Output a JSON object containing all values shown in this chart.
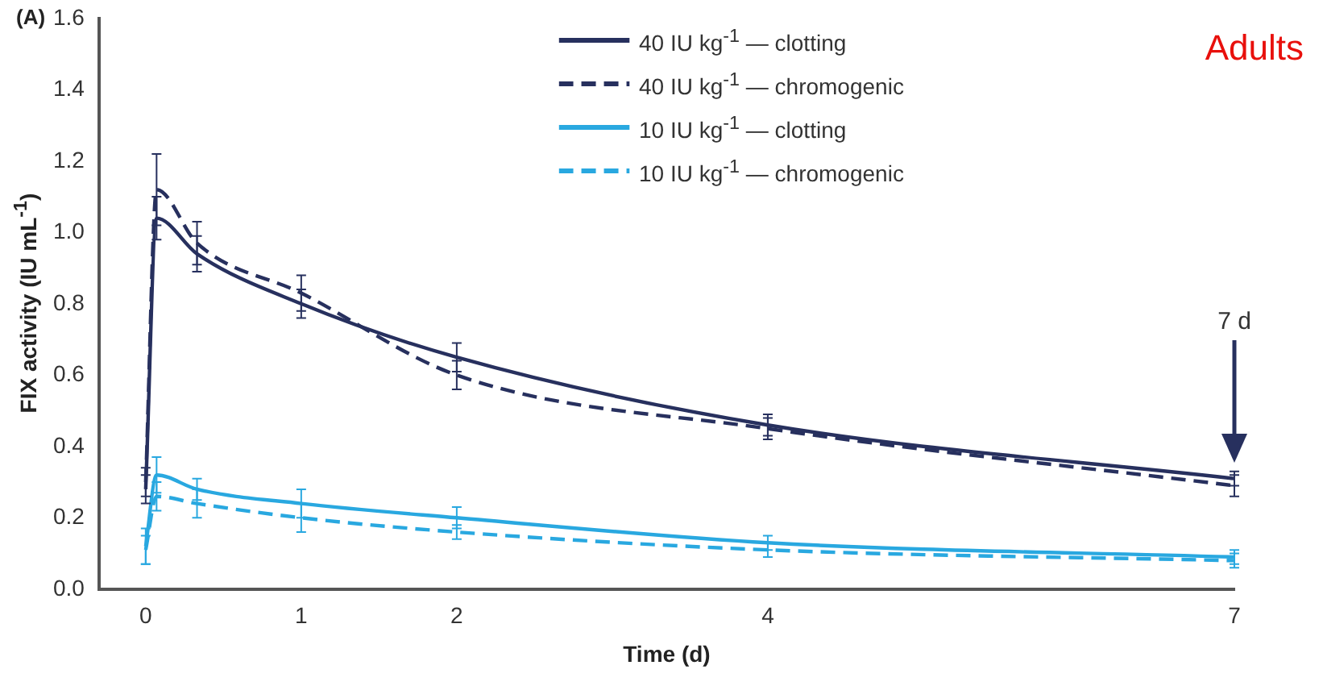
{
  "chart_data": {
    "type": "line",
    "xlabel": "Time (d)",
    "ylabel": "FIX activity (IU mL$^{-1}$)",
    "x": [
      0,
      0.07,
      0.33,
      1,
      2,
      4,
      7
    ],
    "series": [
      {
        "name": "40 IU kg$^{-1}$ — clotting",
        "color": "#27305e",
        "line_style": "solid",
        "values": [
          0.28,
          1.04,
          0.94,
          0.8,
          0.65,
          0.46,
          0.31
        ],
        "errors": [
          0.04,
          0.06,
          0.05,
          0.04,
          0.04,
          0.03,
          0.02
        ]
      },
      {
        "name": "40 IU kg$^{-1}$ — chromogenic",
        "color": "#27305e",
        "line_style": "dashed",
        "values": [
          0.3,
          1.12,
          0.97,
          0.83,
          0.6,
          0.45,
          0.29
        ],
        "errors": [
          0.04,
          0.1,
          0.06,
          0.05,
          0.04,
          0.03,
          0.03
        ]
      },
      {
        "name": "10 IU kg$^{-1}$ — clotting",
        "color": "#29a8e0",
        "line_style": "solid",
        "values": [
          0.12,
          0.32,
          0.28,
          0.24,
          0.2,
          0.13,
          0.09
        ],
        "errors": [
          0.05,
          0.05,
          0.03,
          0.04,
          0.03,
          0.02,
          0.02
        ]
      },
      {
        "name": "10 IU kg$^{-1}$ — chromogenic",
        "color": "#29a8e0",
        "line_style": "dashed",
        "values": [
          0.11,
          0.26,
          0.24,
          0.2,
          0.16,
          0.11,
          0.08
        ],
        "errors": [
          0.04,
          0.04,
          0.04,
          0.04,
          0.02,
          0.02,
          0.02
        ]
      }
    ],
    "xlim": [
      -0.3,
      7
    ],
    "xticks": [
      0,
      1,
      2,
      4,
      7
    ],
    "ylim": [
      0,
      1.6
    ],
    "yticks": [
      {
        "value": 0,
        "label": "0.0"
      },
      {
        "value": 0.2,
        "label": "0.2"
      },
      {
        "value": 0.4,
        "label": "0.4"
      },
      {
        "value": 0.6,
        "label": "0.6"
      },
      {
        "value": 0.8,
        "label": "0.8"
      },
      {
        "value": 1,
        "label": "1.0"
      },
      {
        "value": 1.2,
        "label": "1.2"
      },
      {
        "value": 1.4,
        "label": "1.4"
      },
      {
        "value": 1.6,
        "label": "1.6"
      }
    ],
    "grid": false,
    "legend": "top",
    "marker": "none",
    "annotations": [
      "(A)",
      "Adults",
      "7 d"
    ]
  }
}
